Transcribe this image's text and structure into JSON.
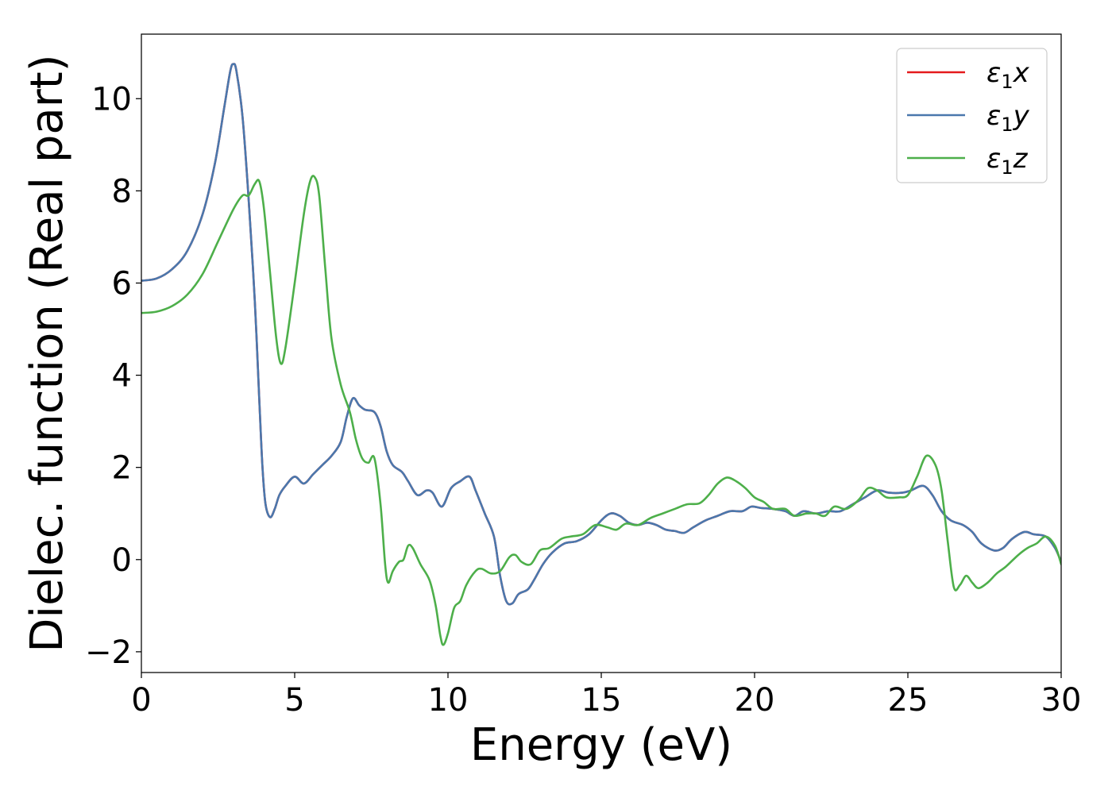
{
  "chart_data": {
    "type": "line",
    "xlabel": "Energy (eV)",
    "ylabel": "Dielec. function (Real part)",
    "xlim": [
      0,
      30
    ],
    "ylim": [
      -2.45,
      11.4
    ],
    "xticks": [
      0,
      5,
      10,
      15,
      20,
      25,
      30
    ],
    "yticks": [
      -2,
      0,
      2,
      4,
      6,
      8,
      10
    ],
    "xtick_labels": [
      "0",
      "5",
      "10",
      "15",
      "20",
      "25",
      "30"
    ],
    "ytick_labels": [
      "−2",
      "0",
      "2",
      "4",
      "6",
      "8",
      "10"
    ],
    "grid": false,
    "legend_position": "top-right",
    "series": [
      {
        "name": "ε1x",
        "legend_main": "ε",
        "legend_sub": "1",
        "legend_var": "x",
        "color": "#e41a1c",
        "points": [
          [
            0,
            6.05
          ],
          [
            0.5,
            6.1
          ],
          [
            1,
            6.3
          ],
          [
            1.5,
            6.7
          ],
          [
            2,
            7.5
          ],
          [
            2.4,
            8.6
          ],
          [
            2.7,
            9.8
          ],
          [
            2.9,
            10.6
          ],
          [
            3.0,
            10.75
          ],
          [
            3.1,
            10.6
          ],
          [
            3.3,
            9.6
          ],
          [
            3.5,
            7.8
          ],
          [
            3.7,
            5.6
          ],
          [
            3.85,
            3.4
          ],
          [
            3.95,
            2.0
          ],
          [
            4.05,
            1.2
          ],
          [
            4.2,
            0.92
          ],
          [
            4.35,
            1.1
          ],
          [
            4.5,
            1.4
          ],
          [
            4.7,
            1.6
          ],
          [
            5.0,
            1.8
          ],
          [
            5.3,
            1.65
          ],
          [
            5.6,
            1.85
          ],
          [
            5.9,
            2.05
          ],
          [
            6.2,
            2.25
          ],
          [
            6.5,
            2.55
          ],
          [
            6.7,
            3.1
          ],
          [
            6.9,
            3.5
          ],
          [
            7.1,
            3.35
          ],
          [
            7.3,
            3.25
          ],
          [
            7.6,
            3.2
          ],
          [
            7.8,
            2.9
          ],
          [
            8.0,
            2.35
          ],
          [
            8.2,
            2.05
          ],
          [
            8.5,
            1.9
          ],
          [
            8.7,
            1.7
          ],
          [
            9.0,
            1.4
          ],
          [
            9.3,
            1.5
          ],
          [
            9.5,
            1.45
          ],
          [
            9.8,
            1.15
          ],
          [
            10.1,
            1.55
          ],
          [
            10.4,
            1.7
          ],
          [
            10.7,
            1.8
          ],
          [
            10.9,
            1.5
          ],
          [
            11.2,
            1.0
          ],
          [
            11.5,
            0.5
          ],
          [
            11.7,
            -0.35
          ],
          [
            11.9,
            -0.9
          ],
          [
            12.1,
            -0.95
          ],
          [
            12.3,
            -0.75
          ],
          [
            12.6,
            -0.65
          ],
          [
            12.8,
            -0.45
          ],
          [
            13.1,
            -0.1
          ],
          [
            13.4,
            0.15
          ],
          [
            13.8,
            0.35
          ],
          [
            14.2,
            0.4
          ],
          [
            14.6,
            0.55
          ],
          [
            15.0,
            0.85
          ],
          [
            15.3,
            1.0
          ],
          [
            15.6,
            0.95
          ],
          [
            15.9,
            0.8
          ],
          [
            16.2,
            0.75
          ],
          [
            16.5,
            0.8
          ],
          [
            16.8,
            0.75
          ],
          [
            17.1,
            0.65
          ],
          [
            17.4,
            0.62
          ],
          [
            17.7,
            0.58
          ],
          [
            18.0,
            0.7
          ],
          [
            18.4,
            0.85
          ],
          [
            18.8,
            0.95
          ],
          [
            19.2,
            1.05
          ],
          [
            19.6,
            1.05
          ],
          [
            19.9,
            1.15
          ],
          [
            20.2,
            1.12
          ],
          [
            20.6,
            1.1
          ],
          [
            21.0,
            1.05
          ],
          [
            21.3,
            0.95
          ],
          [
            21.6,
            1.05
          ],
          [
            22.0,
            1.0
          ],
          [
            22.4,
            1.05
          ],
          [
            22.8,
            1.05
          ],
          [
            23.2,
            1.2
          ],
          [
            23.6,
            1.35
          ],
          [
            24.0,
            1.5
          ],
          [
            24.4,
            1.45
          ],
          [
            24.8,
            1.45
          ],
          [
            25.1,
            1.5
          ],
          [
            25.5,
            1.6
          ],
          [
            25.8,
            1.4
          ],
          [
            26.1,
            1.05
          ],
          [
            26.4,
            0.85
          ],
          [
            26.8,
            0.75
          ],
          [
            27.1,
            0.6
          ],
          [
            27.4,
            0.35
          ],
          [
            27.8,
            0.2
          ],
          [
            28.1,
            0.25
          ],
          [
            28.4,
            0.45
          ],
          [
            28.8,
            0.6
          ],
          [
            29.1,
            0.55
          ],
          [
            29.5,
            0.5
          ],
          [
            29.8,
            0.25
          ],
          [
            30.0,
            -0.05
          ]
        ]
      },
      {
        "name": "ε1y",
        "legend_main": "ε",
        "legend_sub": "1",
        "legend_var": "y",
        "color": "#4a78ad",
        "points": [
          [
            0,
            6.05
          ],
          [
            0.5,
            6.1
          ],
          [
            1,
            6.3
          ],
          [
            1.5,
            6.7
          ],
          [
            2,
            7.5
          ],
          [
            2.4,
            8.6
          ],
          [
            2.7,
            9.8
          ],
          [
            2.9,
            10.6
          ],
          [
            3.0,
            10.75
          ],
          [
            3.1,
            10.6
          ],
          [
            3.3,
            9.6
          ],
          [
            3.5,
            7.8
          ],
          [
            3.7,
            5.6
          ],
          [
            3.85,
            3.4
          ],
          [
            3.95,
            2.0
          ],
          [
            4.05,
            1.2
          ],
          [
            4.2,
            0.92
          ],
          [
            4.35,
            1.1
          ],
          [
            4.5,
            1.4
          ],
          [
            4.7,
            1.6
          ],
          [
            5.0,
            1.8
          ],
          [
            5.3,
            1.65
          ],
          [
            5.6,
            1.85
          ],
          [
            5.9,
            2.05
          ],
          [
            6.2,
            2.25
          ],
          [
            6.5,
            2.55
          ],
          [
            6.7,
            3.1
          ],
          [
            6.9,
            3.5
          ],
          [
            7.1,
            3.35
          ],
          [
            7.3,
            3.25
          ],
          [
            7.6,
            3.2
          ],
          [
            7.8,
            2.9
          ],
          [
            8.0,
            2.35
          ],
          [
            8.2,
            2.05
          ],
          [
            8.5,
            1.9
          ],
          [
            8.7,
            1.7
          ],
          [
            9.0,
            1.4
          ],
          [
            9.3,
            1.5
          ],
          [
            9.5,
            1.45
          ],
          [
            9.8,
            1.15
          ],
          [
            10.1,
            1.55
          ],
          [
            10.4,
            1.7
          ],
          [
            10.7,
            1.8
          ],
          [
            10.9,
            1.5
          ],
          [
            11.2,
            1.0
          ],
          [
            11.5,
            0.5
          ],
          [
            11.7,
            -0.35
          ],
          [
            11.9,
            -0.9
          ],
          [
            12.1,
            -0.95
          ],
          [
            12.3,
            -0.75
          ],
          [
            12.6,
            -0.65
          ],
          [
            12.8,
            -0.45
          ],
          [
            13.1,
            -0.1
          ],
          [
            13.4,
            0.15
          ],
          [
            13.8,
            0.35
          ],
          [
            14.2,
            0.4
          ],
          [
            14.6,
            0.55
          ],
          [
            15.0,
            0.85
          ],
          [
            15.3,
            1.0
          ],
          [
            15.6,
            0.95
          ],
          [
            15.9,
            0.8
          ],
          [
            16.2,
            0.75
          ],
          [
            16.5,
            0.8
          ],
          [
            16.8,
            0.75
          ],
          [
            17.1,
            0.65
          ],
          [
            17.4,
            0.62
          ],
          [
            17.7,
            0.58
          ],
          [
            18.0,
            0.7
          ],
          [
            18.4,
            0.85
          ],
          [
            18.8,
            0.95
          ],
          [
            19.2,
            1.05
          ],
          [
            19.6,
            1.05
          ],
          [
            19.9,
            1.15
          ],
          [
            20.2,
            1.12
          ],
          [
            20.6,
            1.1
          ],
          [
            21.0,
            1.05
          ],
          [
            21.3,
            0.95
          ],
          [
            21.6,
            1.05
          ],
          [
            22.0,
            1.0
          ],
          [
            22.4,
            1.05
          ],
          [
            22.8,
            1.05
          ],
          [
            23.2,
            1.2
          ],
          [
            23.6,
            1.35
          ],
          [
            24.0,
            1.5
          ],
          [
            24.4,
            1.45
          ],
          [
            24.8,
            1.45
          ],
          [
            25.1,
            1.5
          ],
          [
            25.5,
            1.6
          ],
          [
            25.8,
            1.4
          ],
          [
            26.1,
            1.05
          ],
          [
            26.4,
            0.85
          ],
          [
            26.8,
            0.75
          ],
          [
            27.1,
            0.6
          ],
          [
            27.4,
            0.35
          ],
          [
            27.8,
            0.2
          ],
          [
            28.1,
            0.25
          ],
          [
            28.4,
            0.45
          ],
          [
            28.8,
            0.6
          ],
          [
            29.1,
            0.55
          ],
          [
            29.5,
            0.5
          ],
          [
            29.8,
            0.25
          ],
          [
            30.0,
            -0.05
          ]
        ]
      },
      {
        "name": "ε1z",
        "legend_main": "ε",
        "legend_sub": "1",
        "legend_var": "z",
        "color": "#4daf4a",
        "points": [
          [
            0,
            5.35
          ],
          [
            0.5,
            5.38
          ],
          [
            1,
            5.5
          ],
          [
            1.5,
            5.75
          ],
          [
            2,
            6.2
          ],
          [
            2.5,
            6.9
          ],
          [
            3.0,
            7.6
          ],
          [
            3.3,
            7.9
          ],
          [
            3.5,
            7.9
          ],
          [
            3.7,
            8.15
          ],
          [
            3.85,
            8.2
          ],
          [
            4.0,
            7.6
          ],
          [
            4.2,
            6.2
          ],
          [
            4.4,
            4.8
          ],
          [
            4.55,
            4.25
          ],
          [
            4.7,
            4.6
          ],
          [
            5.0,
            6.0
          ],
          [
            5.3,
            7.5
          ],
          [
            5.5,
            8.2
          ],
          [
            5.65,
            8.3
          ],
          [
            5.8,
            7.9
          ],
          [
            6.0,
            6.3
          ],
          [
            6.2,
            4.8
          ],
          [
            6.5,
            3.8
          ],
          [
            6.8,
            3.2
          ],
          [
            7.0,
            2.6
          ],
          [
            7.2,
            2.2
          ],
          [
            7.4,
            2.1
          ],
          [
            7.6,
            2.2
          ],
          [
            7.8,
            1.2
          ],
          [
            7.95,
            -0.1
          ],
          [
            8.05,
            -0.5
          ],
          [
            8.2,
            -0.25
          ],
          [
            8.4,
            -0.05
          ],
          [
            8.55,
            0.0
          ],
          [
            8.7,
            0.3
          ],
          [
            8.85,
            0.25
          ],
          [
            9.1,
            -0.1
          ],
          [
            9.4,
            -0.45
          ],
          [
            9.6,
            -1.0
          ],
          [
            9.75,
            -1.65
          ],
          [
            9.85,
            -1.85
          ],
          [
            10.0,
            -1.6
          ],
          [
            10.2,
            -1.05
          ],
          [
            10.4,
            -0.9
          ],
          [
            10.6,
            -0.55
          ],
          [
            10.9,
            -0.25
          ],
          [
            11.1,
            -0.2
          ],
          [
            11.4,
            -0.3
          ],
          [
            11.7,
            -0.25
          ],
          [
            12.0,
            0.05
          ],
          [
            12.2,
            0.1
          ],
          [
            12.4,
            -0.05
          ],
          [
            12.7,
            -0.1
          ],
          [
            13.0,
            0.2
          ],
          [
            13.3,
            0.25
          ],
          [
            13.7,
            0.45
          ],
          [
            14.0,
            0.5
          ],
          [
            14.4,
            0.55
          ],
          [
            14.8,
            0.75
          ],
          [
            15.2,
            0.7
          ],
          [
            15.5,
            0.65
          ],
          [
            15.8,
            0.78
          ],
          [
            16.2,
            0.75
          ],
          [
            16.6,
            0.9
          ],
          [
            17.0,
            1.0
          ],
          [
            17.4,
            1.1
          ],
          [
            17.8,
            1.2
          ],
          [
            18.2,
            1.22
          ],
          [
            18.5,
            1.4
          ],
          [
            18.8,
            1.65
          ],
          [
            19.1,
            1.78
          ],
          [
            19.4,
            1.7
          ],
          [
            19.7,
            1.55
          ],
          [
            20.0,
            1.35
          ],
          [
            20.3,
            1.25
          ],
          [
            20.6,
            1.1
          ],
          [
            21.0,
            1.1
          ],
          [
            21.3,
            0.95
          ],
          [
            21.7,
            1.0
          ],
          [
            22.0,
            1.0
          ],
          [
            22.3,
            0.95
          ],
          [
            22.6,
            1.15
          ],
          [
            23.0,
            1.1
          ],
          [
            23.4,
            1.3
          ],
          [
            23.7,
            1.55
          ],
          [
            24.0,
            1.5
          ],
          [
            24.3,
            1.35
          ],
          [
            24.7,
            1.35
          ],
          [
            25.0,
            1.4
          ],
          [
            25.3,
            1.8
          ],
          [
            25.6,
            2.25
          ],
          [
            25.9,
            2.05
          ],
          [
            26.1,
            1.5
          ],
          [
            26.3,
            0.4
          ],
          [
            26.5,
            -0.6
          ],
          [
            26.7,
            -0.55
          ],
          [
            26.9,
            -0.35
          ],
          [
            27.1,
            -0.5
          ],
          [
            27.3,
            -0.62
          ],
          [
            27.6,
            -0.5
          ],
          [
            27.9,
            -0.3
          ],
          [
            28.2,
            -0.15
          ],
          [
            28.6,
            0.1
          ],
          [
            28.9,
            0.25
          ],
          [
            29.2,
            0.35
          ],
          [
            29.5,
            0.5
          ],
          [
            29.8,
            0.3
          ],
          [
            30.0,
            -0.1
          ]
        ]
      }
    ]
  }
}
